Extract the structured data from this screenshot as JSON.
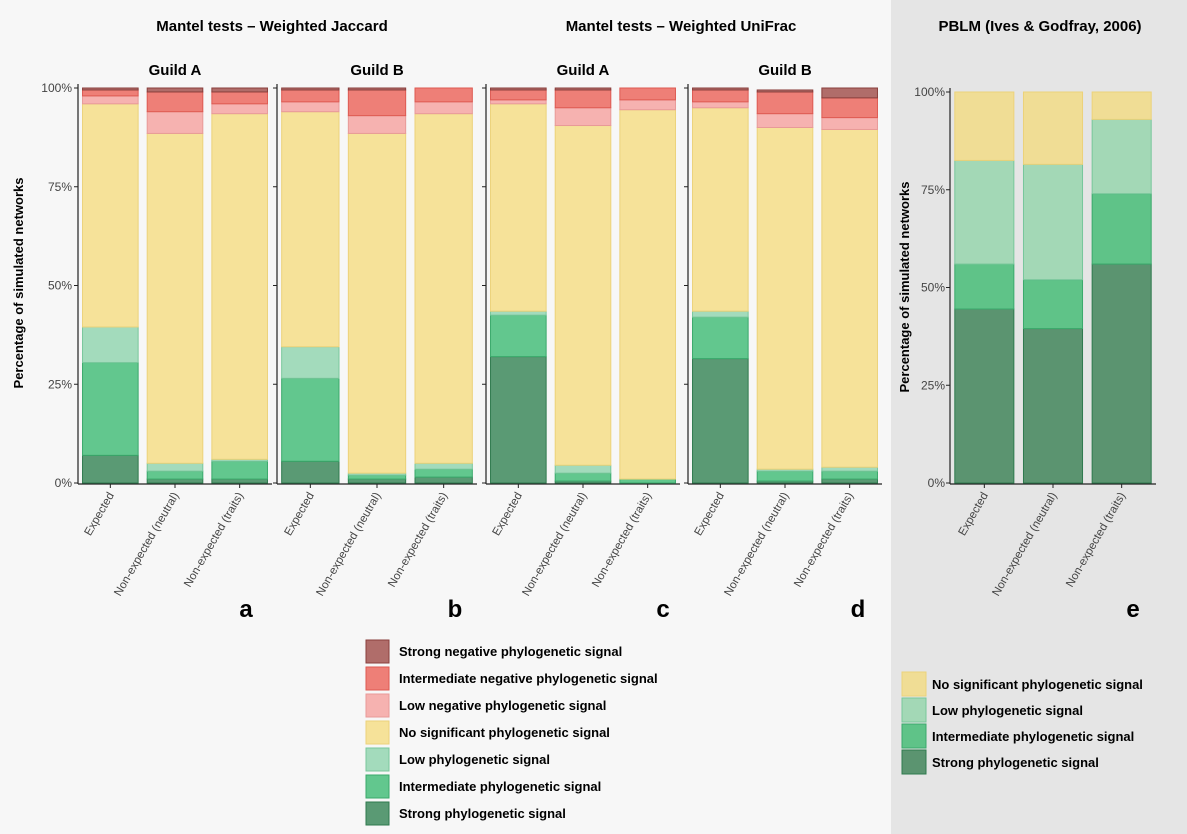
{
  "titles": {
    "jaccard": "Mantel tests – Weighted Jaccard",
    "unifrac": "Mantel tests – Weighted UniFrac",
    "pblm": "PBLM (Ives & Godfray, 2006)"
  },
  "ylabel": "Percentage of simulated networks",
  "y_ticks": [
    "0%",
    "25%",
    "50%",
    "75%",
    "100%"
  ],
  "categories": [
    "Expected",
    "Non-expected (neutral)",
    "Non-expected (traits)"
  ],
  "colors": {
    "Strong": "#5a9a74",
    "Intermediate": "#62c78e",
    "Low": "#a3dbbc",
    "NoSig": "#f6e299",
    "LowNeg": "#f6b2b0",
    "IntNeg": "#ee7f77",
    "StrongNeg": "#b06d6a",
    "Strong_border": "#2f7a4e",
    "Intermediate_border": "#3aa96b",
    "Low_border": "#78c79b",
    "NoSig_border": "#ecd27a",
    "LowNeg_border": "#e89a98",
    "IntNeg_border": "#de5a52",
    "StrongNeg_border": "#8a3f3c",
    "pblm_NoSig": "#f0dd95",
    "pblm_Low": "#a3d8b6",
    "pblm_Intermediate": "#5fc388",
    "pblm_Strong": "#5b9470"
  },
  "legend_mantel": [
    {
      "key": "StrongNeg",
      "label": "Strong negative phylogenetic signal"
    },
    {
      "key": "IntNeg",
      "label": "Intermediate negative phylogenetic signal"
    },
    {
      "key": "LowNeg",
      "label": "Low negative phylogenetic signal"
    },
    {
      "key": "NoSig",
      "label": "No significant phylogenetic signal"
    },
    {
      "key": "Low",
      "label": "Low phylogenetic signal"
    },
    {
      "key": "Intermediate",
      "label": "Intermediate phylogenetic signal"
    },
    {
      "key": "Strong",
      "label": "Strong phylogenetic signal"
    }
  ],
  "legend_pblm": [
    {
      "key": "NoSig",
      "label": "No significant phylogenetic signal"
    },
    {
      "key": "Low",
      "label": "Low phylogenetic signal"
    },
    {
      "key": "Intermediate",
      "label": "Intermediate phylogenetic signal"
    },
    {
      "key": "Strong",
      "label": "Strong phylogenetic signal"
    }
  ],
  "chart_data": [
    {
      "type": "bar",
      "stacked": true,
      "panel": "a",
      "group": "Mantel tests – Weighted Jaccard",
      "facet": "Guild A",
      "categories": [
        "Expected",
        "Non-expected (neutral)",
        "Non-expected (traits)"
      ],
      "ylim": [
        0,
        100
      ],
      "ylabel": "Percentage of simulated networks",
      "series": [
        {
          "key": "Strong",
          "values": [
            7,
            1,
            1
          ]
        },
        {
          "key": "Intermediate",
          "values": [
            23.5,
            2,
            4.5
          ]
        },
        {
          "key": "Low",
          "values": [
            9,
            2,
            0.5
          ]
        },
        {
          "key": "NoSig",
          "values": [
            56.5,
            83.5,
            87.5
          ]
        },
        {
          "key": "LowNeg",
          "values": [
            2,
            5.5,
            2.5
          ]
        },
        {
          "key": "IntNeg",
          "values": [
            1.5,
            5,
            3
          ]
        },
        {
          "key": "StrongNeg",
          "values": [
            0.5,
            1,
            1
          ]
        }
      ]
    },
    {
      "type": "bar",
      "stacked": true,
      "panel": "b",
      "group": "Mantel tests – Weighted Jaccard",
      "facet": "Guild B",
      "categories": [
        "Expected",
        "Non-expected (neutral)",
        "Non-expected (traits)"
      ],
      "ylim": [
        0,
        100
      ],
      "series": [
        {
          "key": "Strong",
          "values": [
            5.5,
            1,
            1.5
          ]
        },
        {
          "key": "Intermediate",
          "values": [
            21,
            1,
            2
          ]
        },
        {
          "key": "Low",
          "values": [
            8,
            0.5,
            1.5
          ]
        },
        {
          "key": "NoSig",
          "values": [
            59.5,
            86,
            88.5
          ]
        },
        {
          "key": "LowNeg",
          "values": [
            2.5,
            4.5,
            3
          ]
        },
        {
          "key": "IntNeg",
          "values": [
            3,
            6.5,
            3.5
          ]
        },
        {
          "key": "StrongNeg",
          "values": [
            0.5,
            0.5,
            0
          ]
        }
      ]
    },
    {
      "type": "bar",
      "stacked": true,
      "panel": "c",
      "group": "Mantel tests – Weighted UniFrac",
      "facet": "Guild A",
      "categories": [
        "Expected",
        "Non-expected (neutral)",
        "Non-expected (traits)"
      ],
      "ylim": [
        0,
        100
      ],
      "series": [
        {
          "key": "Strong",
          "values": [
            32,
            0.5,
            0
          ]
        },
        {
          "key": "Intermediate",
          "values": [
            10.5,
            2,
            1
          ]
        },
        {
          "key": "Low",
          "values": [
            1,
            2,
            0
          ]
        },
        {
          "key": "NoSig",
          "values": [
            52.5,
            86,
            93.5
          ]
        },
        {
          "key": "LowNeg",
          "values": [
            1,
            4.5,
            2.5
          ]
        },
        {
          "key": "IntNeg",
          "values": [
            2.5,
            4.5,
            3
          ]
        },
        {
          "key": "StrongNeg",
          "values": [
            0.5,
            0.5,
            0
          ]
        }
      ]
    },
    {
      "type": "bar",
      "stacked": true,
      "panel": "d",
      "group": "Mantel tests – Weighted UniFrac",
      "facet": "Guild B",
      "categories": [
        "Expected",
        "Non-expected (neutral)",
        "Non-expected (traits)"
      ],
      "ylim": [
        0,
        100
      ],
      "series": [
        {
          "key": "Strong",
          "values": [
            31.5,
            0.5,
            1
          ]
        },
        {
          "key": "Intermediate",
          "values": [
            10.5,
            2.5,
            2
          ]
        },
        {
          "key": "Low",
          "values": [
            1.5,
            0.5,
            1
          ]
        },
        {
          "key": "NoSig",
          "values": [
            51.5,
            86.5,
            85.5
          ]
        },
        {
          "key": "LowNeg",
          "values": [
            1.5,
            3.5,
            3
          ]
        },
        {
          "key": "IntNeg",
          "values": [
            3,
            5.5,
            5
          ]
        },
        {
          "key": "StrongNeg",
          "values": [
            0.5,
            0.5,
            2.5
          ]
        }
      ]
    },
    {
      "type": "bar",
      "stacked": true,
      "panel": "e",
      "group": "PBLM (Ives & Godfray, 2006)",
      "categories": [
        "Expected",
        "Non-expected (neutral)",
        "Non-expected (traits)"
      ],
      "ylim": [
        0,
        100
      ],
      "ylabel": "Percentage of simulated networks",
      "series": [
        {
          "key": "Strong",
          "values": [
            44.5,
            39.5,
            56
          ]
        },
        {
          "key": "Intermediate",
          "values": [
            11.5,
            12.5,
            18
          ]
        },
        {
          "key": "Low",
          "values": [
            26.5,
            29.5,
            19
          ]
        },
        {
          "key": "NoSig",
          "values": [
            17.5,
            18.5,
            7
          ]
        }
      ]
    }
  ]
}
